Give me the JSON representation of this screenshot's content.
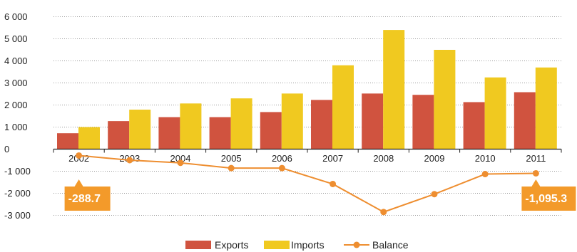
{
  "chart_data": {
    "type": "bar",
    "categories": [
      "2002",
      "2003",
      "2004",
      "2005",
      "2006",
      "2007",
      "2008",
      "2009",
      "2010",
      "2011"
    ],
    "series": [
      {
        "name": "Exports",
        "type": "bar",
        "color": "#d0533f",
        "values": [
          720,
          1270,
          1450,
          1450,
          1680,
          2230,
          2520,
          2460,
          2130,
          2580
        ]
      },
      {
        "name": "Imports",
        "type": "bar",
        "color": "#f0c920",
        "values": [
          1000,
          1790,
          2070,
          2300,
          2520,
          3800,
          5400,
          4500,
          3250,
          3700
        ]
      },
      {
        "name": "Balance",
        "type": "line",
        "color": "#ee8e30",
        "values": [
          -288.7,
          -500,
          -620,
          -860,
          -860,
          -1580,
          -2850,
          -2040,
          -1130,
          -1095.3
        ]
      }
    ],
    "y_ticks": [
      "6 000",
      "5 000",
      "4 000",
      "3 000",
      "2 000",
      "1 000",
      "0",
      "-1 000",
      "-2 000",
      "-3 000"
    ],
    "y_tick_values": [
      6000,
      5000,
      4000,
      3000,
      2000,
      1000,
      0,
      -1000,
      -2000,
      -3000
    ],
    "ylim": [
      -3500,
      6000
    ],
    "grid": true,
    "legend": "bottom-center",
    "callouts": [
      {
        "label": "-288.7",
        "index": 0,
        "color": "#f39a2a"
      },
      {
        "label": "-1,095.3",
        "index": 9,
        "color": "#f39a2a"
      }
    ],
    "title": "",
    "xlabel": "",
    "ylabel": ""
  }
}
